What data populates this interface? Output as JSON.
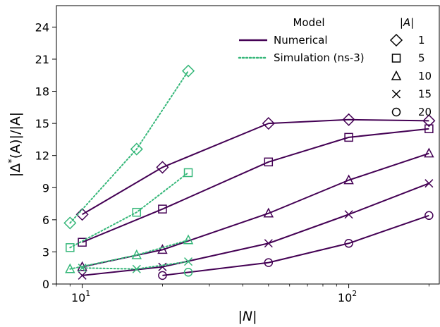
{
  "chart_data": {
    "type": "line",
    "xscale": "log",
    "xlabel": "|N|",
    "ylabel": "|Δ*(A)|/|A|",
    "xlim": [
      8,
      220
    ],
    "ylim": [
      0,
      26
    ],
    "xticks": [
      {
        "value": 10,
        "base": "10",
        "exp": "1"
      },
      {
        "value": 100,
        "base": "10",
        "exp": "2"
      }
    ],
    "yticks": [
      0,
      3,
      6,
      9,
      12,
      15,
      18,
      21,
      24
    ],
    "colors": {
      "numerical": "#440154",
      "simulation": "#35b779"
    },
    "legend": {
      "placement": "top-right",
      "model_title": "Model",
      "model_entries": [
        {
          "label": "Numerical",
          "style": "numerical"
        },
        {
          "label": "Simulation (ns-3)",
          "style": "simulation"
        }
      ],
      "size_title": "|A|",
      "size_entries": [
        {
          "label": "1",
          "marker": "diamond"
        },
        {
          "label": "5",
          "marker": "square"
        },
        {
          "label": "10",
          "marker": "triangle"
        },
        {
          "label": "15",
          "marker": "x"
        },
        {
          "label": "20",
          "marker": "circle"
        }
      ]
    },
    "series": [
      {
        "model": "numerical",
        "A": "1",
        "marker": "diamond",
        "x": [
          10,
          20,
          50,
          100,
          200
        ],
        "y": [
          6.5,
          10.9,
          15.0,
          15.35,
          15.25
        ]
      },
      {
        "model": "numerical",
        "A": "5",
        "marker": "square",
        "x": [
          10,
          20,
          50,
          100,
          200
        ],
        "y": [
          3.9,
          7.0,
          11.4,
          13.7,
          14.5
        ]
      },
      {
        "model": "numerical",
        "A": "10",
        "marker": "triangle",
        "x": [
          10,
          20,
          50,
          100,
          200
        ],
        "y": [
          1.6,
          3.2,
          6.6,
          9.7,
          12.2
        ]
      },
      {
        "model": "numerical",
        "A": "15",
        "marker": "x",
        "x": [
          10,
          20,
          50,
          100,
          200
        ],
        "y": [
          0.8,
          1.6,
          3.8,
          6.5,
          9.4
        ]
      },
      {
        "model": "numerical",
        "A": "20",
        "marker": "circle",
        "x": [
          20,
          50,
          100,
          200
        ],
        "y": [
          0.8,
          2.0,
          3.8,
          6.4
        ]
      },
      {
        "model": "simulation",
        "A": "1",
        "marker": "diamond",
        "x": [
          9,
          16,
          25
        ],
        "y": [
          5.7,
          12.6,
          19.9
        ]
      },
      {
        "model": "simulation",
        "A": "5",
        "marker": "square",
        "x": [
          9,
          16,
          25
        ],
        "y": [
          3.4,
          6.7,
          10.4
        ]
      },
      {
        "model": "simulation",
        "A": "10",
        "marker": "triangle",
        "x": [
          9,
          16,
          25
        ],
        "y": [
          1.4,
          2.7,
          4.1
        ]
      },
      {
        "model": "simulation",
        "A": "15",
        "marker": "x",
        "x": [
          10,
          16,
          25
        ],
        "y": [
          1.5,
          1.4,
          2.1
        ]
      },
      {
        "model": "simulation",
        "A": "20",
        "marker": "circle",
        "x": [
          25
        ],
        "y": [
          1.1
        ]
      }
    ]
  }
}
